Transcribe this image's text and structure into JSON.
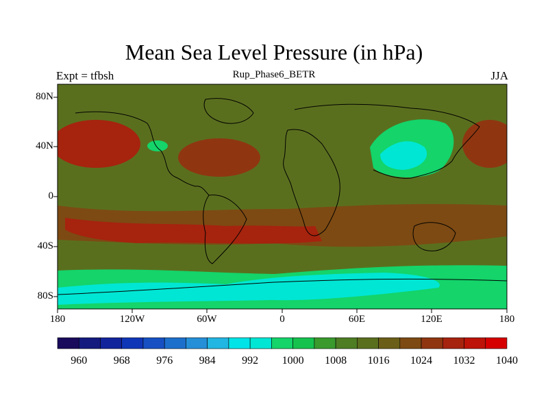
{
  "title": "Mean Sea Level Pressure (in hPa)",
  "subtitle_left": "Expt = tfbsh",
  "subtitle_center": "Rup_Phase6_BETR",
  "subtitle_right": "JJA",
  "lat_labels": [
    "80N",
    "40N",
    "0",
    "40S",
    "80S"
  ],
  "lon_labels": [
    "180",
    "120W",
    "60W",
    "0",
    "60E",
    "120E",
    "180"
  ],
  "colorbar": {
    "labels": [
      "960",
      "968",
      "976",
      "984",
      "992",
      "1000",
      "1008",
      "1016",
      "1024",
      "1032",
      "1040"
    ],
    "colors": [
      "#1a0a5c",
      "#151a7e",
      "#12249c",
      "#1036b8",
      "#1650c3",
      "#1d6fcc",
      "#2590d8",
      "#22b6e2",
      "#00e4e8",
      "#00e6d4",
      "#14d46a",
      "#15c24e",
      "#3a9a2d",
      "#4e7d24",
      "#5a6f1e",
      "#6b5e18",
      "#7d4a13",
      "#8f3611",
      "#a6230e",
      "#bd1308",
      "#d60000"
    ]
  },
  "map_colors": {
    "base": "#5a6f1e",
    "low_green": "#3a9a2d",
    "green": "#14d46a",
    "cyan": "#00e6d4",
    "high1": "#7d4a13",
    "high2": "#8f3611",
    "high3": "#a6230e"
  }
}
